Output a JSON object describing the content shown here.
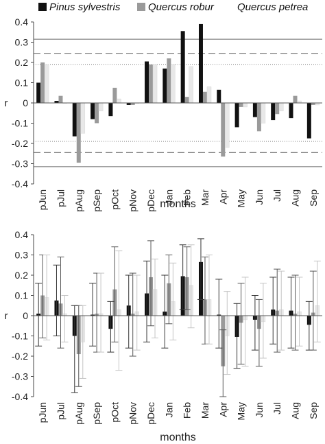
{
  "legend": [
    {
      "name": "Pinus sylvestris",
      "color": "#111111"
    },
    {
      "name": "Quercus robur",
      "color": "#9a9a9a"
    },
    {
      "name": "Quercus petrea",
      "color": "#e8e8e8"
    }
  ],
  "chart_data": [
    {
      "type": "bar",
      "categories": [
        "pJun",
        "pJul",
        "pAug",
        "pSep",
        "pOct",
        "pNov",
        "pDec",
        "Jan",
        "Feb",
        "Mar",
        "Apr",
        "May",
        "Jun",
        "Jul",
        "Aug",
        "Sep"
      ],
      "series": [
        {
          "name": "Pinus sylvestris",
          "color": "#111111",
          "values": [
            0.1,
            0.01,
            -0.165,
            -0.08,
            -0.065,
            -0.01,
            0.205,
            0.17,
            0.355,
            0.39,
            0.065,
            -0.12,
            -0.07,
            -0.085,
            -0.075,
            -0.175
          ]
        },
        {
          "name": "Quercus robur",
          "color": "#9a9a9a",
          "values": [
            0.2,
            0.035,
            -0.295,
            -0.1,
            0.075,
            -0.01,
            0.19,
            0.22,
            0.03,
            0.055,
            -0.265,
            -0.02,
            -0.14,
            -0.055,
            0.035,
            -0.01
          ]
        },
        {
          "name": "Quercus petrea",
          "color": "#e8e8e8",
          "values": [
            0.19,
            0.0,
            -0.15,
            -0.04,
            0.02,
            0.0,
            0.19,
            0.19,
            0.18,
            0.08,
            -0.22,
            -0.02,
            -0.1,
            -0.04,
            0.01,
            -0.01
          ]
        }
      ],
      "reference_lines": [
        {
          "value": 0.315,
          "style": "solid"
        },
        {
          "value": 0.245,
          "style": "dashed"
        },
        {
          "value": 0.19,
          "style": "dotted"
        },
        {
          "value": -0.19,
          "style": "dotted"
        },
        {
          "value": -0.245,
          "style": "dashed"
        },
        {
          "value": -0.315,
          "style": "solid"
        }
      ],
      "yticks": [
        "0.4",
        "0.3",
        "0.2",
        "0.1",
        "0",
        "-0.1",
        "-0.2",
        "-0.3",
        "-0.4"
      ],
      "ylabel": "r",
      "xlabel": "months",
      "ylim": [
        -0.4,
        0.4
      ]
    },
    {
      "type": "bar",
      "categories": [
        "pJun",
        "pJul",
        "pAug",
        "pSep",
        "pOct",
        "pNov",
        "pDec",
        "Jan",
        "Feb",
        "Mar",
        "Apr",
        "May",
        "Jun",
        "Jul",
        "Aug",
        "Sep"
      ],
      "series": [
        {
          "name": "Pinus sylvestris",
          "color": "#111111",
          "values": [
            0.01,
            0.075,
            -0.1,
            0.005,
            -0.065,
            0.05,
            0.11,
            0.02,
            0.195,
            0.265,
            0.005,
            -0.105,
            -0.02,
            0.03,
            0.025,
            -0.045
          ],
          "err_lo": [
            -0.15,
            -0.1,
            -0.38,
            -0.15,
            -0.18,
            -0.16,
            -0.13,
            -0.16,
            0.03,
            0.08,
            -0.16,
            -0.26,
            -0.17,
            -0.14,
            -0.16,
            -0.17
          ],
          "err_hi": [
            0.16,
            0.25,
            0.05,
            0.16,
            0.07,
            0.2,
            0.27,
            0.2,
            0.35,
            0.38,
            0.18,
            0.06,
            0.1,
            0.19,
            0.19,
            0.07
          ]
        },
        {
          "name": "Quercus robur",
          "color": "#9a9a9a",
          "values": [
            0.1,
            0.06,
            -0.19,
            0.01,
            0.13,
            0.01,
            0.19,
            0.16,
            0.19,
            0.08,
            -0.25,
            -0.035,
            -0.065,
            0.025,
            0.01,
            0.015
          ],
          "err_lo": [
            -0.11,
            -0.16,
            -0.35,
            -0.18,
            -0.13,
            -0.2,
            -0.05,
            -0.04,
            0.03,
            -0.14,
            -0.4,
            -0.24,
            -0.25,
            -0.18,
            -0.17,
            -0.17
          ],
          "err_hi": [
            0.3,
            0.29,
            0.05,
            0.21,
            0.34,
            0.21,
            0.37,
            0.3,
            0.34,
            0.29,
            -0.07,
            0.16,
            0.08,
            0.23,
            0.2,
            0.22
          ]
        },
        {
          "name": "Quercus petrea",
          "color": "#e8e8e8",
          "values": [
            0.09,
            0.01,
            -0.13,
            0.01,
            0.03,
            0.02,
            0.13,
            0.07,
            0.15,
            0.08,
            -0.1,
            -0.02,
            -0.03,
            0.03,
            0.02,
            0.05
          ],
          "err_lo": [
            -0.12,
            -0.13,
            -0.31,
            -0.18,
            -0.27,
            -0.17,
            -0.11,
            -0.12,
            -0.06,
            -0.14,
            -0.29,
            -0.25,
            -0.21,
            -0.17,
            -0.15,
            -0.13
          ],
          "err_hi": [
            0.3,
            0.1,
            0.05,
            0.21,
            0.32,
            0.2,
            0.28,
            0.26,
            0.35,
            0.3,
            0.12,
            0.19,
            0.16,
            0.22,
            0.19,
            0.27
          ]
        }
      ],
      "yticks": [
        "0.4",
        "0.3",
        "0.2",
        "0.1",
        "0",
        "-0.1",
        "-0.2",
        "-0.3",
        "-0.4"
      ],
      "ylabel": "r",
      "xlabel": "months",
      "ylim": [
        -0.4,
        0.4
      ]
    }
  ]
}
